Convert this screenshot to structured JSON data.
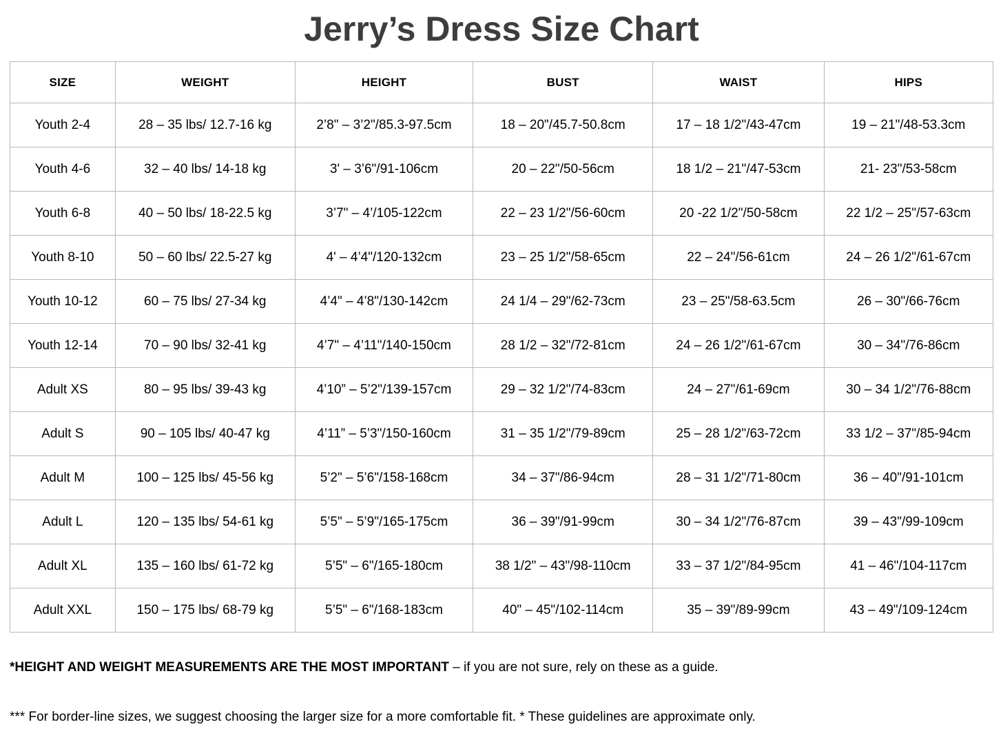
{
  "title": "Jerry’s Dress Size Chart",
  "table": {
    "columns": [
      "SIZE",
      "WEIGHT",
      "HEIGHT",
      "BUST",
      "WAIST",
      "HIPS"
    ],
    "rows": [
      [
        "Youth 2-4",
        "28 – 35 lbs/ 12.7-16 kg",
        "2’8\" – 3’2\"/85.3-97.5cm",
        "18 – 20\"/45.7-50.8cm",
        "17 – 18 1/2\"/43-47cm",
        "19 – 21\"/48-53.3cm"
      ],
      [
        "Youth 4-6",
        "32 – 40 lbs/ 14-18 kg",
        "3' – 3’6\"/91-106cm",
        "20 – 22\"/50-56cm",
        "18 1/2 – 21\"/47-53cm",
        "21- 23\"/53-58cm"
      ],
      [
        "Youth 6-8",
        "40 – 50 lbs/ 18-22.5 kg",
        "3’7\" – 4’/105-122cm",
        "22 – 23 1/2\"/56-60cm",
        "20 -22 1/2\"/50-58cm",
        "22 1/2 – 25\"/57-63cm"
      ],
      [
        "Youth 8-10",
        "50 – 60 lbs/ 22.5-27 kg",
        "4' – 4’4\"/120-132cm",
        "23 – 25 1/2\"/58-65cm",
        "22 – 24\"/56-61cm",
        "24 – 26 1/2\"/61-67cm"
      ],
      [
        "Youth 10-12",
        "60 – 75 lbs/ 27-34 kg",
        "4’4\" – 4’8\"/130-142cm",
        "24 1/4 – 29\"/62-73cm",
        "23 – 25\"/58-63.5cm",
        "26 – 30\"/66-76cm"
      ],
      [
        "Youth 12-14",
        "70 – 90 lbs/ 32-41 kg",
        "4’7\" – 4’11\"/140-150cm",
        "28 1/2 – 32\"/72-81cm",
        "24 – 26 1/2\"/61-67cm",
        "30 – 34\"/76-86cm"
      ],
      [
        "Adult XS",
        "80 – 95 lbs/ 39-43 kg",
        "4’10” – 5’2\"/139-157cm",
        "29 – 32 1/2\"/74-83cm",
        "24 – 27\"/61-69cm",
        "30 – 34 1/2\"/76-88cm"
      ],
      [
        "Adult S",
        "90 – 105 lbs/ 40-47 kg",
        "4’11” – 5’3\"/150-160cm",
        "31 – 35 1/2\"/79-89cm",
        "25 – 28 1/2\"/63-72cm",
        "33 1/2 – 37\"/85-94cm"
      ],
      [
        "Adult M",
        "100 – 125 lbs/ 45-56 kg",
        "5’2\" – 5’6\"/158-168cm",
        "34 – 37\"/86-94cm",
        "28 – 31 1/2\"/71-80cm",
        "36 – 40\"/91-101cm"
      ],
      [
        "Adult L",
        "120 – 135 lbs/ 54-61 kg",
        "5’5\" – 5’9\"/165-175cm",
        "36 – 39\"/91-99cm",
        "30 – 34 1/2\"/76-87cm",
        "39 – 43\"/99-109cm"
      ],
      [
        "Adult XL",
        "135 – 160 lbs/ 61-72 kg",
        "5’5\" – 6\"/165-180cm",
        "38 1/2\" – 43\"/98-110cm",
        "33 – 37 1/2\"/84-95cm",
        "41 – 46\"/104-117cm"
      ],
      [
        "Adult XXL",
        "150 – 175 lbs/ 68-79 kg",
        "5’5\" – 6\"/168-183cm",
        "40\" – 45\"/102-114cm",
        "35 – 39\"/89-99cm",
        "43 – 49\"/109-124cm"
      ]
    ]
  },
  "notes": {
    "important_bold": "*HEIGHT AND WEIGHT MEASUREMENTS ARE THE MOST IMPORTANT",
    "important_rest": " – if you are not sure, rely on these as a guide.",
    "borderline": "*** For border-line sizes, we suggest choosing the larger size for a more comfortable fit. * These guidelines are approximate only."
  },
  "colors": {
    "background": "#ffffff",
    "title_text": "#3d3d3d",
    "body_text": "#000000",
    "table_border": "#b7b7b7"
  }
}
